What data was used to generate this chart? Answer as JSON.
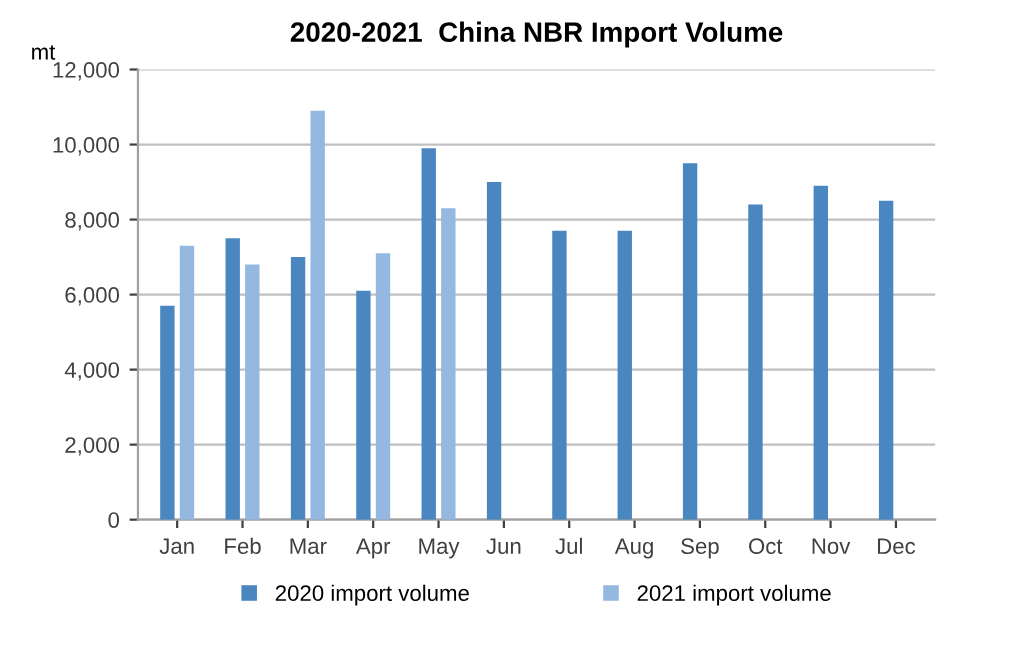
{
  "chart_data": {
    "type": "bar",
    "title": "2020-2021  China NBR Import Volume",
    "ylabel": "mt",
    "categories": [
      "Jan",
      "Feb",
      "Mar",
      "Apr",
      "May",
      "Jun",
      "Jul",
      "Aug",
      "Sep",
      "Oct",
      "Nov",
      "Dec"
    ],
    "series": [
      {
        "name": "2020 import volume",
        "color": "#4a86c0",
        "values": [
          5700,
          7500,
          7000,
          6100,
          9900,
          9000,
          7700,
          7700,
          9500,
          8400,
          8900,
          8500
        ]
      },
      {
        "name": "2021 import volume",
        "color": "#95b8e0",
        "values": [
          7300,
          6800,
          10900,
          7100,
          8300,
          null,
          null,
          null,
          null,
          null,
          null,
          null
        ]
      }
    ],
    "ylim": [
      0,
      12000
    ],
    "yticks": [
      {
        "value": 0,
        "label": "0"
      },
      {
        "value": 2000,
        "label": "2,000"
      },
      {
        "value": 4000,
        "label": "4,000"
      },
      {
        "value": 6000,
        "label": "6,000"
      },
      {
        "value": 8000,
        "label": "8,000"
      },
      {
        "value": 10000,
        "label": "10,000"
      },
      {
        "value": 12000,
        "label": "12,000"
      }
    ],
    "grid": "y",
    "legend": "bottom"
  }
}
